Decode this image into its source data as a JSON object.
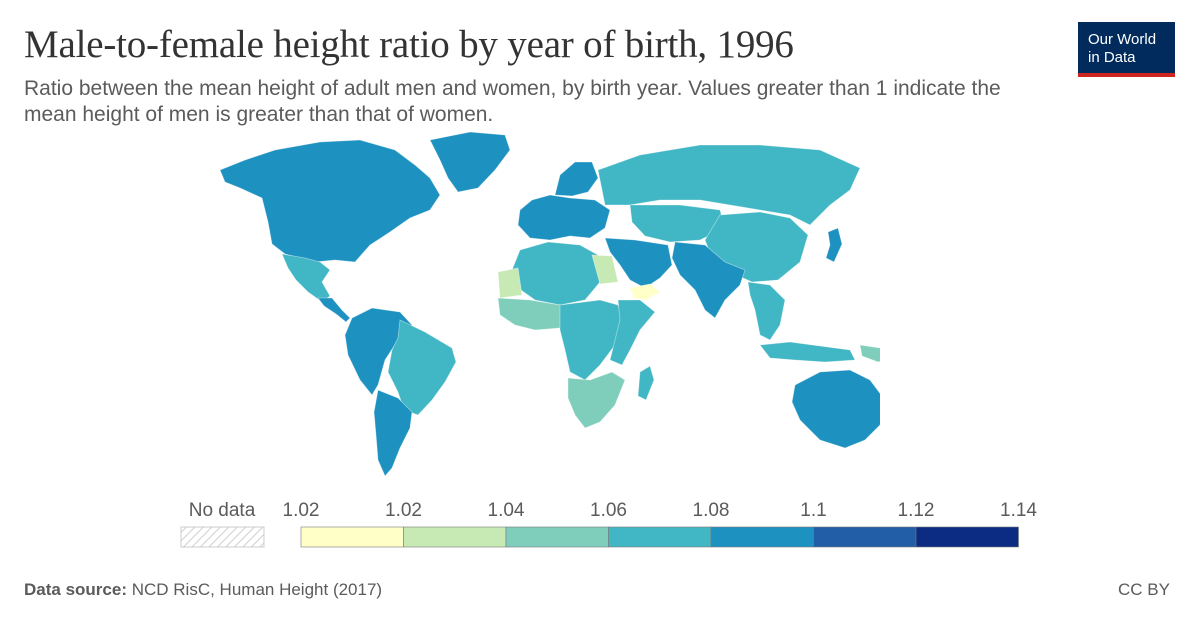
{
  "header": {
    "title": "Male-to-female height ratio by year of birth, 1996",
    "subtitle": "Ratio between the mean height of adult men and women, by birth year. Values greater than 1 indicate the mean height of men is greater than that of women."
  },
  "logo": {
    "line1": "Our World",
    "line2": "in Data",
    "bg_color": "#002b5c",
    "accent_color": "#ce261e"
  },
  "legend": {
    "no_data_label": "No data",
    "tick_labels": [
      "1.02",
      "1.02",
      "1.04",
      "1.06",
      "1.08",
      "1.1",
      "1.12",
      "1.14"
    ],
    "bins": [
      {
        "from": 1.02,
        "to": 1.02,
        "color": "#ffffc8"
      },
      {
        "from": 1.02,
        "to": 1.04,
        "color": "#c7e9b4"
      },
      {
        "from": 1.04,
        "to": 1.06,
        "color": "#7fcdbb"
      },
      {
        "from": 1.06,
        "to": 1.08,
        "color": "#41b6c4"
      },
      {
        "from": 1.08,
        "to": 1.1,
        "color": "#1d91c0"
      },
      {
        "from": 1.1,
        "to": 1.12,
        "color": "#225ea8"
      },
      {
        "from": 1.12,
        "to": 1.14,
        "color": "#0c2c84"
      }
    ]
  },
  "map": {
    "regions": [
      {
        "name": "North America",
        "color": "#1d91c0"
      },
      {
        "name": "Greenland",
        "color": "#1d91c0"
      },
      {
        "name": "Mexico",
        "color": "#41b6c4"
      },
      {
        "name": "Central America",
        "color": "#1d91c0"
      },
      {
        "name": "South America North",
        "color": "#1d91c0"
      },
      {
        "name": "Brazil",
        "color": "#41b6c4"
      },
      {
        "name": "Southern Cone",
        "color": "#1d91c0"
      },
      {
        "name": "Europe",
        "color": "#1d91c0"
      },
      {
        "name": "Scandinavia",
        "color": "#1d91c0"
      },
      {
        "name": "Russia",
        "color": "#41b6c4"
      },
      {
        "name": "Central Asia",
        "color": "#41b6c4"
      },
      {
        "name": "China",
        "color": "#41b6c4"
      },
      {
        "name": "South Asia",
        "color": "#1d91c0"
      },
      {
        "name": "Middle East",
        "color": "#1d91c0"
      },
      {
        "name": "North Africa",
        "color": "#41b6c4"
      },
      {
        "name": "Egypt",
        "color": "#c7e9b4"
      },
      {
        "name": "Mauritania",
        "color": "#c7e9b4"
      },
      {
        "name": "Yemen",
        "color": "#ffffc8"
      },
      {
        "name": "West Africa",
        "color": "#7fcdbb"
      },
      {
        "name": "Central Africa",
        "color": "#41b6c4"
      },
      {
        "name": "East Africa",
        "color": "#41b6c4"
      },
      {
        "name": "Southern Africa",
        "color": "#7fcdbb"
      },
      {
        "name": "Southeast Asia",
        "color": "#41b6c4"
      },
      {
        "name": "Japan",
        "color": "#1d91c0"
      },
      {
        "name": "Indonesia",
        "color": "#41b6c4"
      },
      {
        "name": "Papua New Guinea",
        "color": "#7fcdbb"
      },
      {
        "name": "Australia",
        "color": "#1d91c0"
      },
      {
        "name": "New Zealand",
        "color": "#1d91c0"
      },
      {
        "name": "Madagascar",
        "color": "#41b6c4"
      }
    ]
  },
  "footer": {
    "source_label": "Data source:",
    "source_text": "NCD RisC, Human Height (2017)",
    "license": "CC BY"
  }
}
